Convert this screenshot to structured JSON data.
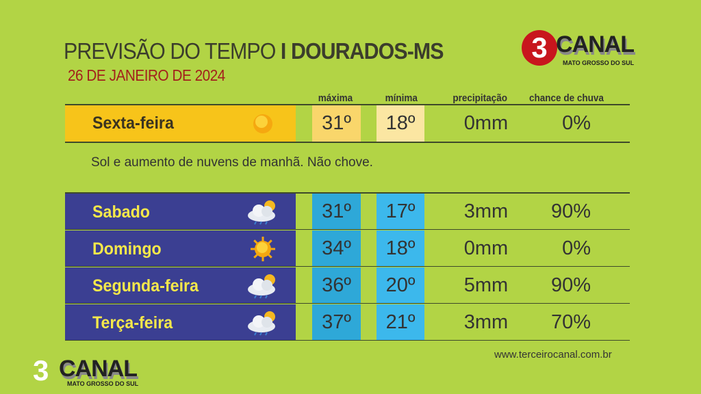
{
  "header": {
    "title_light": "PREVISÃO DO TEMPO",
    "title_bold": "I DOURADOS-MS",
    "date": "26  DE JANEIRO DE 2024"
  },
  "logo": {
    "number": "3",
    "name": "CANAL",
    "region": "MATO GROSSO DO SUL"
  },
  "columns": {
    "max": "máxima",
    "min": "mínima",
    "precip": "precipitação",
    "chance": "chance de chuva"
  },
  "today": {
    "day": "Sexta-feira",
    "icon": "sun-icon",
    "max": "31º",
    "min": "18º",
    "precip": "0mm",
    "chance": "0%",
    "description": "Sol e aumento de nuvens de manhã. Não chove."
  },
  "forecast": [
    {
      "day": "Sabado",
      "icon": "cloud-sun-rain-icon",
      "max": "31º",
      "min": "17º",
      "precip": "3mm",
      "chance": "90%"
    },
    {
      "day": "Domingo",
      "icon": "sun-icon",
      "max": "34º",
      "min": "18º",
      "precip": "0mm",
      "chance": "0%"
    },
    {
      "day": "Segunda-feira",
      "icon": "cloud-sun-rain-icon",
      "max": "36º",
      "min": "20º",
      "precip": "5mm",
      "chance": "90%"
    },
    {
      "day": "Terça-feira",
      "icon": "cloud-sun-rain-icon",
      "max": "37º",
      "min": "21º",
      "precip": "3mm",
      "chance": "70%"
    }
  ],
  "footer": {
    "website": "www.terceirocanal.com.br"
  },
  "colors": {
    "background": "#b2d445",
    "today_day": "#f7c41a",
    "today_max": "#f9d66b",
    "today_min": "#fbe6a2",
    "day_cell": "#3b3f92",
    "max_cell": "#2ea8d8",
    "min_cell": "#3cb8ec",
    "day_text": "#f5e84a"
  }
}
